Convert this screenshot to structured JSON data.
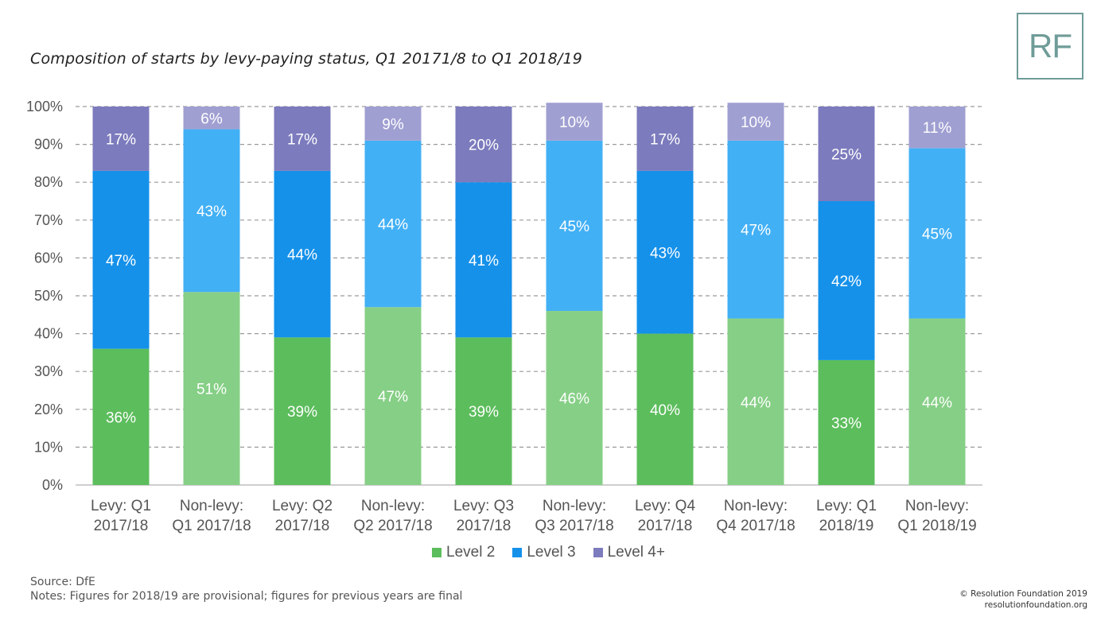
{
  "title": "Composition of starts by levy-paying status, Q1 20171/8 to Q1 2018/19",
  "logo_text": "RF",
  "source": "Source: DfE",
  "notes": "Notes: Figures for 2018/19 are provisional; figures for previous years are final",
  "copyright": "© Resolution Foundation 2019",
  "website": "resolutionfoundation.org",
  "chart_data": {
    "type": "bar",
    "stacked": true,
    "categories": [
      [
        "Levy: Q1",
        "2017/18"
      ],
      [
        "Non-levy:",
        "Q1 2017/18"
      ],
      [
        "Levy: Q2",
        "2017/18"
      ],
      [
        "Non-levy:",
        "Q2 2017/18"
      ],
      [
        "Levy: Q3",
        "2017/18"
      ],
      [
        "Non-levy:",
        "Q3 2017/18"
      ],
      [
        "Levy: Q4",
        "2017/18"
      ],
      [
        "Non-levy:",
        "Q4 2017/18"
      ],
      [
        "Levy: Q1",
        "2018/19"
      ],
      [
        "Non-levy:",
        "Q1 2018/19"
      ]
    ],
    "series": [
      {
        "name": "Level 2",
        "values": [
          36,
          51,
          39,
          47,
          39,
          46,
          40,
          44,
          33,
          44
        ],
        "colors": {
          "levy": "#5cbd5c",
          "nonlevy": "#86cf86"
        }
      },
      {
        "name": "Level 3",
        "values": [
          47,
          43,
          44,
          44,
          41,
          45,
          43,
          47,
          42,
          45
        ],
        "colors": {
          "levy": "#1591ea",
          "nonlevy": "#42b0f5"
        }
      },
      {
        "name": "Level 4+",
        "values": [
          17,
          6,
          17,
          9,
          20,
          10,
          17,
          10,
          25,
          11
        ],
        "colors": {
          "levy": "#7c7bbd",
          "nonlevy": "#a09fd2"
        }
      }
    ],
    "legend_colors": [
      "#5cbd5c",
      "#1591ea",
      "#7c7bbd"
    ],
    "yticks": [
      "0%",
      "10%",
      "20%",
      "30%",
      "40%",
      "50%",
      "60%",
      "70%",
      "80%",
      "90%",
      "100%"
    ],
    "ylim": [
      0,
      100
    ],
    "grid": true,
    "legend_position": "bottom"
  }
}
